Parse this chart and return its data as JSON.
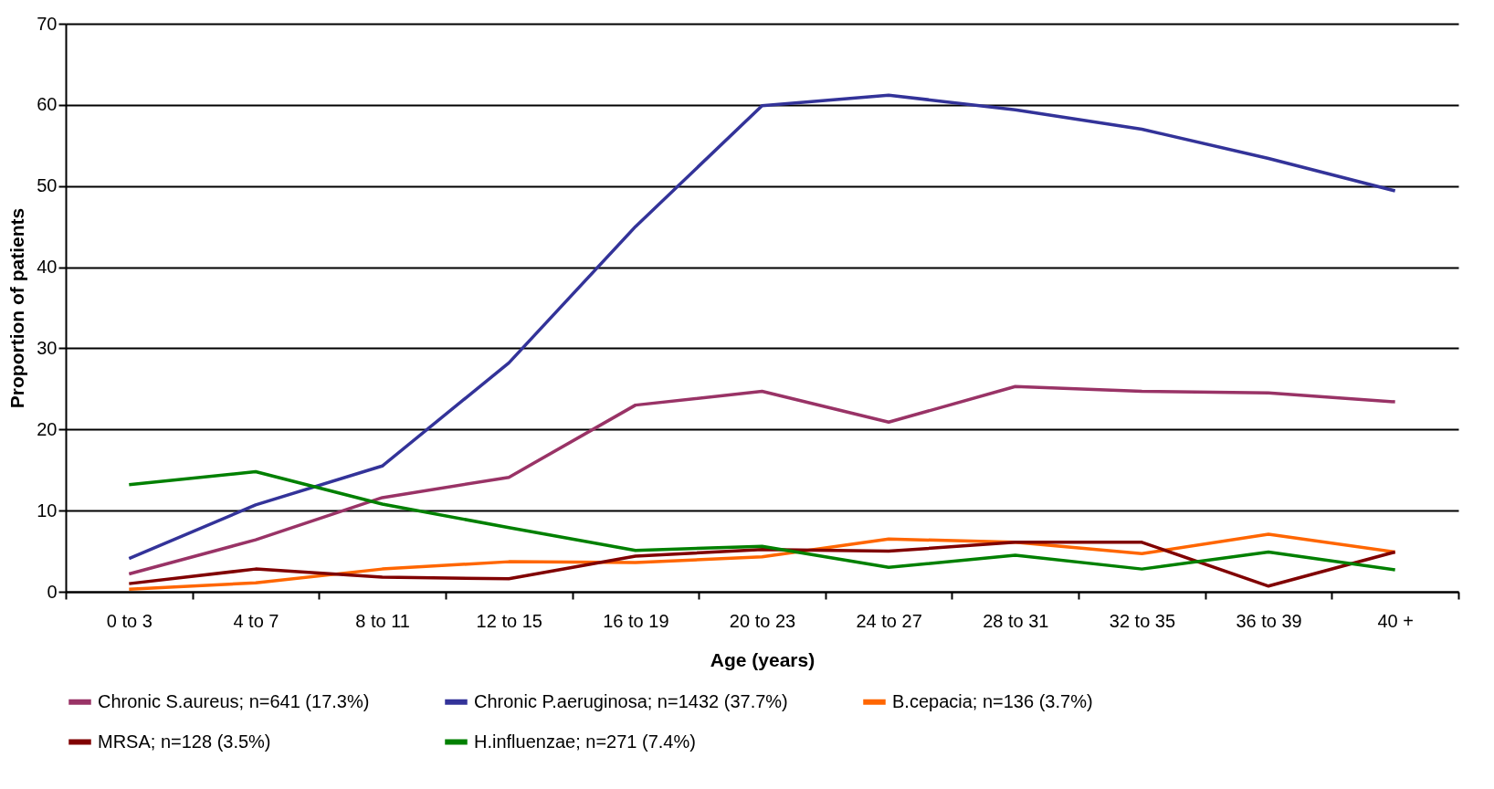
{
  "chart_data": {
    "type": "line",
    "xlabel": "Age (years)",
    "ylabel": "Proportion of patients",
    "categories": [
      "0 to 3",
      "4 to 7",
      "8 to 11",
      "12 to 15",
      "16 to 19",
      "20 to 23",
      "24 to 27",
      "28 to 31",
      "32 to 35",
      "36 to 39",
      "40 +"
    ],
    "series": [
      {
        "name": "Chronic S.aureus; n=641 (17.3%)",
        "color": "#993366",
        "values": [
          2.2,
          6.4,
          11.6,
          14.1,
          23,
          24.7,
          20.9,
          25.3,
          24.7,
          24.5,
          23.4
        ]
      },
      {
        "name": "Chronic P.aeruginosa; n=1432 (37.7%)",
        "color": "#333399",
        "values": [
          4.1,
          10.7,
          15.5,
          28.2,
          45,
          59.9,
          61.2,
          59.4,
          57,
          53.4,
          49.4
        ]
      },
      {
        "name": "B.cepacia; n=136 (3.7%)",
        "color": "#ff6600",
        "values": [
          0.3,
          1.1,
          2.8,
          3.7,
          3.6,
          4.3,
          6.5,
          6.1,
          4.7,
          7.1,
          4.9
        ]
      },
      {
        "name": "MRSA; n=128 (3.5%)",
        "color": "#800000",
        "values": [
          1.0,
          2.8,
          1.8,
          1.6,
          4.4,
          5.2,
          5.0,
          6.1,
          6.1,
          0.7,
          4.9
        ]
      },
      {
        "name": "H.influenzae; n=271 (7.4%)",
        "color": "#008000",
        "values": [
          13.2,
          14.8,
          10.8,
          7.9,
          5.1,
          5.6,
          3.0,
          4.5,
          2.8,
          4.9,
          2.7
        ]
      }
    ],
    "ylim": [
      0,
      70
    ],
    "yticks": [
      0,
      10,
      20,
      30,
      40,
      50,
      60,
      70
    ],
    "grid": "y",
    "legend": "bottom",
    "marker": "none",
    "line_style": "solid"
  }
}
